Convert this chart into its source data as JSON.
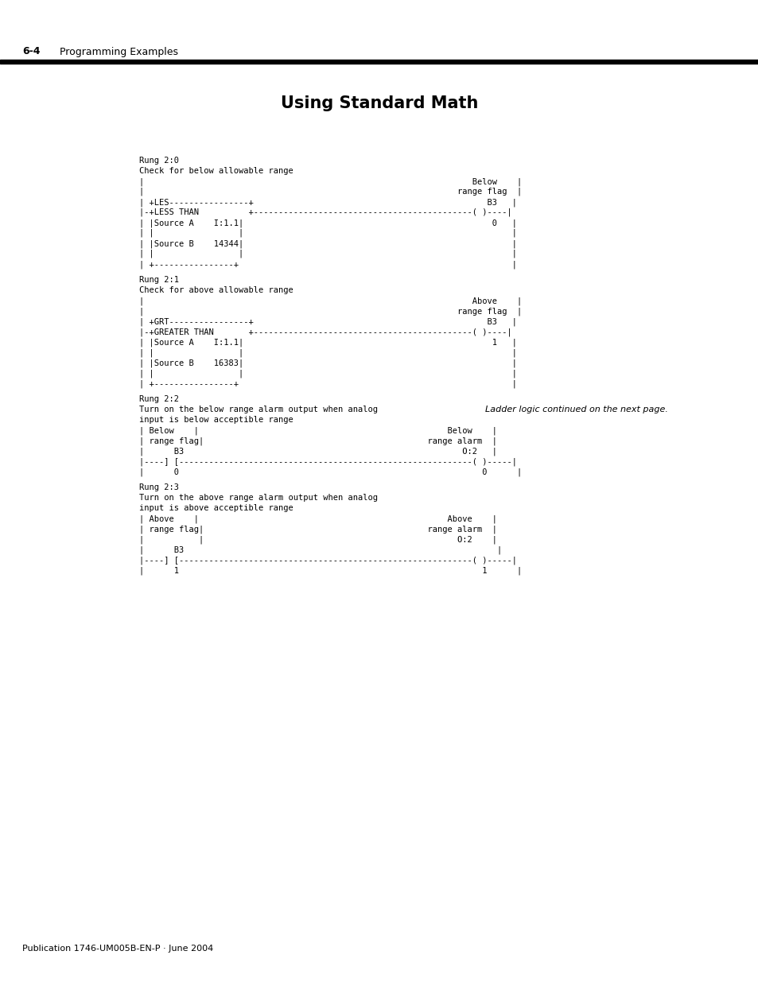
{
  "title": "Using Standard Math",
  "header_label": "6-4",
  "header_text": "Programming Examples",
  "footer_text": "Publication 1746-UM005B-EN-P · June 2004",
  "italic_note": "Ladder logic continued on the next page.",
  "bg_color": "#ffffff",
  "text_color": "#000000",
  "ladder_lines": [
    "Rung 2:0",
    "Check for below allowable range",
    "|                                                                  Below    |",
    "|                                                               range flag  |",
    "| +LES----------------+                                               B3   |",
    "|-+LESS THAN          +--------------------------------------------( )----|",
    "| |Source A    I:1.1|                                                  0   |",
    "| |                 |                                                      |",
    "| |Source B    14344|                                                      |",
    "| |                 |                                                      |",
    "| +----------------+                                                       |",
    "",
    "Rung 2:1",
    "Check for above allowable range",
    "|                                                                  Above    |",
    "|                                                               range flag  |",
    "| +GRT----------------+                                               B3   |",
    "|-+GREATER THAN       +--------------------------------------------( )----|",
    "| |Source A    I:1.1|                                                  1   |",
    "| |                 |                                                      |",
    "| |Source B    16383|                                                      |",
    "| |                 |                                                      |",
    "| +----------------+                                                       |",
    "",
    "Rung 2:2",
    "Turn on the below range alarm output when analog",
    "input is below acceptible range",
    "| Below    |                                                  Below    |",
    "| range flag|                                             range alarm  |",
    "|      B3                                                        O:2   |",
    "|----] [-----------------------------------------------------------( )-----|",
    "|      0                                                             0      |",
    "",
    "Rung 2:3",
    "Turn on the above range alarm output when analog",
    "input is above acceptible range",
    "| Above    |                                                  Above    |",
    "| range flag|                                             range alarm  |",
    "|           |                                                   O:2    |",
    "|      B3                                                               |",
    "|----] [-----------------------------------------------------------( )-----|",
    "|      1                                                             1      |"
  ]
}
